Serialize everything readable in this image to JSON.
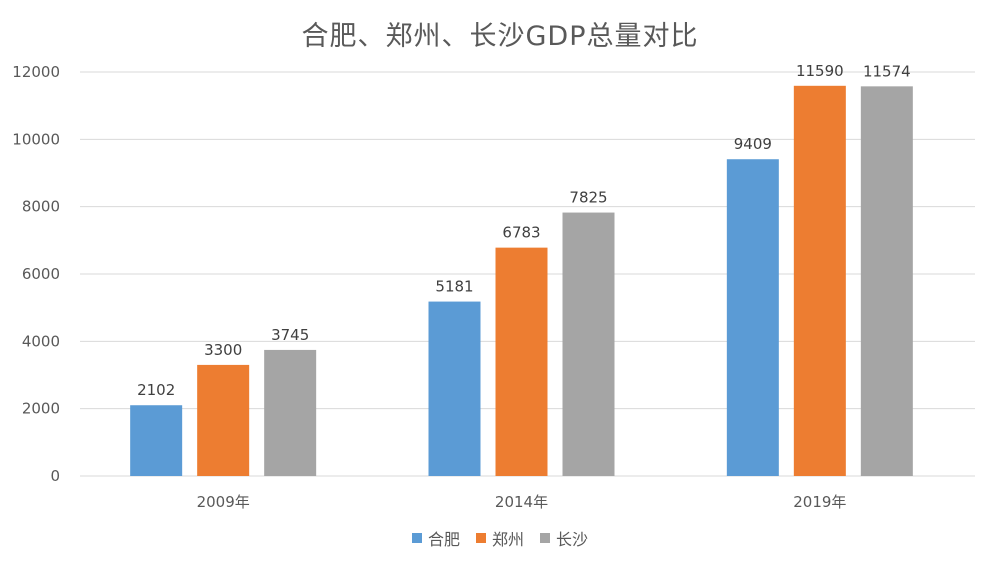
{
  "chart_data": {
    "type": "bar",
    "title": "合肥、郑州、长沙GDP总量对比",
    "categories": [
      "2009年",
      "2014年",
      "2019年"
    ],
    "series": [
      {
        "name": "合肥",
        "color": "#5b9bd5",
        "values": [
          2102,
          5181,
          9409
        ]
      },
      {
        "name": "郑州",
        "color": "#ed7d31",
        "values": [
          3300,
          6783,
          11590
        ]
      },
      {
        "name": "长沙",
        "color": "#a5a5a5",
        "values": [
          3745,
          7825,
          11574
        ]
      }
    ],
    "ylim": [
      0,
      12000
    ],
    "yticks": [
      0,
      2000,
      4000,
      6000,
      8000,
      10000,
      12000
    ],
    "grid": true,
    "legend": "bottom",
    "data_labels": true
  }
}
